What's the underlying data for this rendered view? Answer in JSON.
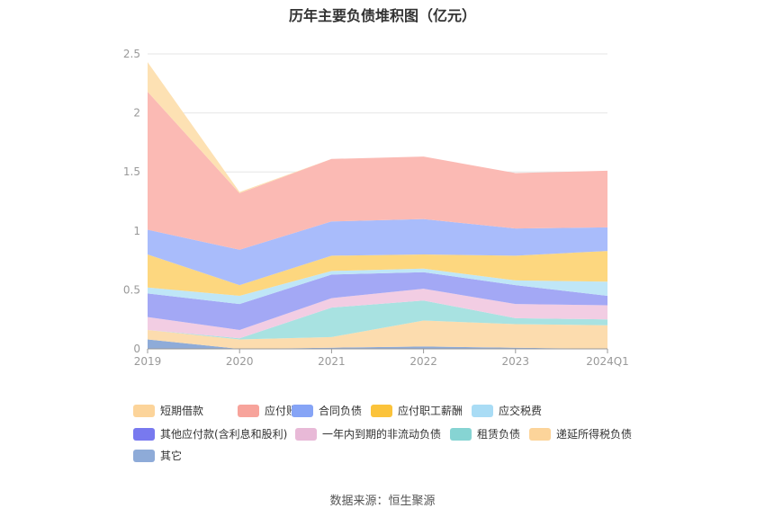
{
  "title": "历年主要负债堆积图（亿元）",
  "source_label": "数据来源：",
  "source_value": "恒生聚源",
  "chart_data": {
    "type": "area",
    "stacked": true,
    "title": "历年主要负债堆积图（亿元）",
    "categories": [
      "2019",
      "2020",
      "2021",
      "2022",
      "2023",
      "2024Q1"
    ],
    "ylim": [
      0,
      2.5
    ],
    "yticks": [
      0,
      0.5,
      1,
      1.5,
      2,
      2.5
    ],
    "grid": true,
    "legend_position": "bottom",
    "series": [
      {
        "name": "其它",
        "color": "#8eabd8",
        "values": [
          0.08,
          0.0,
          0.01,
          0.02,
          0.01,
          0.0
        ]
      },
      {
        "name": "递延所得税负债",
        "color": "#fcdcae",
        "values": [
          0.08,
          0.08,
          0.09,
          0.22,
          0.2,
          0.2
        ]
      },
      {
        "name": "租赁负债",
        "color": "#a8e2e1",
        "values": [
          0.0,
          0.01,
          0.25,
          0.17,
          0.05,
          0.05
        ]
      },
      {
        "name": "一年内到期的非流动负债",
        "color": "#f2cde3",
        "values": [
          0.11,
          0.07,
          0.08,
          0.1,
          0.12,
          0.12
        ]
      },
      {
        "name": "其他应付款(含利息和股利)",
        "color": "#a3a8f5",
        "values": [
          0.2,
          0.22,
          0.2,
          0.14,
          0.16,
          0.08
        ]
      },
      {
        "name": "应交税费",
        "color": "#bfe6f7",
        "values": [
          0.05,
          0.07,
          0.03,
          0.03,
          0.04,
          0.12
        ]
      },
      {
        "name": "应付职工薪酬",
        "color": "#fdd77f",
        "values": [
          0.28,
          0.09,
          0.13,
          0.12,
          0.21,
          0.26
        ]
      },
      {
        "name": "合同负债",
        "color": "#a9bcfb",
        "values": [
          0.21,
          0.3,
          0.29,
          0.3,
          0.23,
          0.2
        ]
      },
      {
        "name": "应付账款",
        "color": "#fbbab4",
        "values": [
          1.17,
          0.48,
          0.53,
          0.53,
          0.47,
          0.48
        ]
      },
      {
        "name": "短期借款",
        "color": "#fde1b3",
        "values": [
          0.25,
          0.01,
          0.0,
          0.0,
          0.0,
          0.0
        ]
      }
    ],
    "legend_order": [
      "短期借款",
      "应付账款",
      "合同负债",
      "应付职工薪酬",
      "应交税费",
      "其他应付款(含利息和股利)",
      "一年内到期的非流动负债",
      "租赁负债",
      "递延所得税负债",
      "其它"
    ],
    "legend_colors": {
      "短期借款": "#fcd49a",
      "应付账款": "#f7a39b",
      "合同负债": "#86a4f6",
      "应付职工薪酬": "#fbc33b",
      "应交税费": "#a9dcf5",
      "其他应付款(含利息和股利)": "#7879ef",
      "一年内到期的非流动负债": "#e8b9d7",
      "租赁负债": "#86d4d3",
      "递延所得税负债": "#fcd49a",
      "其它": "#8eabd8"
    }
  }
}
